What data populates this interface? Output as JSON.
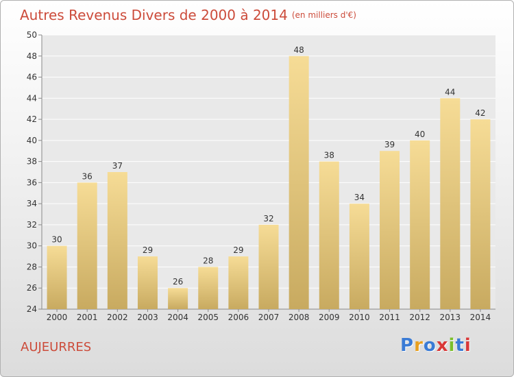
{
  "title": "Autres Revenus Divers de 2000 à 2014",
  "title_unit": "(en milliers d'€)",
  "town": "AUJEURRES",
  "logo": {
    "letters": [
      "P",
      "r",
      "o",
      "x",
      "i",
      "t",
      "i"
    ],
    "colors": [
      "#3a7bd5",
      "#e8a020",
      "#3a7bd5",
      "#d93838",
      "#7bbf2a",
      "#3a7bd5",
      "#d93838"
    ]
  },
  "colors": {
    "bar_top": "#f6dc96",
    "bar_bottom": "#c8aa60",
    "grid": "#ffffff",
    "title": "#cc4b3a"
  },
  "chart_data": {
    "type": "bar",
    "title": "Autres Revenus Divers de 2000 à 2014",
    "xlabel": "",
    "ylabel": "",
    "categories": [
      "2000",
      "2001",
      "2002",
      "2003",
      "2004",
      "2005",
      "2006",
      "2007",
      "2008",
      "2009",
      "2010",
      "2011",
      "2012",
      "2013",
      "2014"
    ],
    "values": [
      30,
      36,
      37,
      29,
      26,
      28,
      29,
      32,
      48,
      38,
      34,
      39,
      40,
      44,
      42
    ],
    "ylim": [
      24,
      50
    ],
    "yticks": [
      24,
      26,
      28,
      30,
      32,
      34,
      36,
      38,
      40,
      42,
      44,
      46,
      48,
      50
    ],
    "grid": true,
    "data_labels": true
  }
}
